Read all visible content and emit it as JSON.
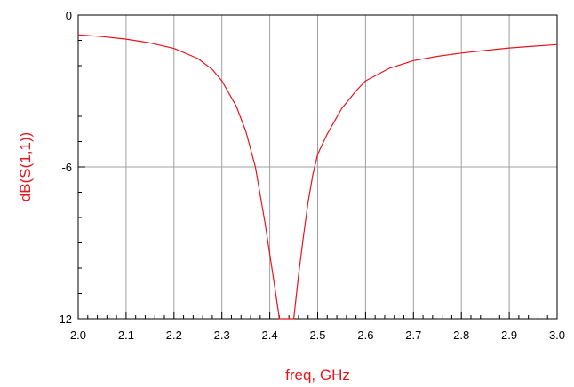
{
  "chart_data": {
    "type": "line",
    "xlabel": "freq, GHz",
    "ylabel": "dB(S(1,1))",
    "xlim": [
      2.0,
      3.0
    ],
    "ylim": [
      -12,
      0
    ],
    "x_ticks": [
      "2.0",
      "2.1",
      "2.2",
      "2.3",
      "2.4",
      "2.5",
      "2.6",
      "2.7",
      "2.8",
      "2.9",
      "3.0"
    ],
    "x_tick_values": [
      2.0,
      2.1,
      2.2,
      2.3,
      2.4,
      2.5,
      2.6,
      2.7,
      2.8,
      2.9,
      3.0
    ],
    "y_ticks": [
      "0",
      "-6",
      "-12"
    ],
    "y_tick_values": [
      0,
      -6,
      -12
    ],
    "grid": true,
    "colors": {
      "series": "#e8141c",
      "label": "#e8141c",
      "grid": "#a0a0a0",
      "axis": "#000000"
    },
    "series": [
      {
        "x": [
          2.0,
          2.05,
          2.1,
          2.15,
          2.2,
          2.25,
          2.28,
          2.3,
          2.33,
          2.35,
          2.37,
          2.39,
          2.41,
          2.42,
          2.423,
          2.45,
          2.46,
          2.47,
          2.48,
          2.49,
          2.5,
          2.52,
          2.55,
          2.58,
          2.6,
          2.65,
          2.7,
          2.75,
          2.8,
          2.85,
          2.9,
          2.95,
          3.0
        ],
        "y": [
          -0.78,
          -0.85,
          -0.95,
          -1.1,
          -1.32,
          -1.72,
          -2.15,
          -2.6,
          -3.6,
          -4.6,
          -6.0,
          -8.2,
          -10.7,
          -12.0,
          -12.0,
          -12.0,
          -10.3,
          -8.8,
          -7.4,
          -6.3,
          -5.5,
          -4.7,
          -3.7,
          -3.0,
          -2.6,
          -2.1,
          -1.8,
          -1.63,
          -1.5,
          -1.4,
          -1.3,
          -1.23,
          -1.17
        ]
      }
    ]
  }
}
